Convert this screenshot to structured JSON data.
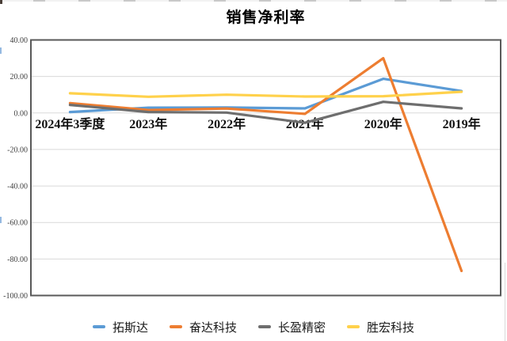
{
  "chart_data": {
    "type": "line",
    "title": "销售净利率",
    "categories": [
      "2024年3季度",
      "2023年",
      "2022年",
      "2021年",
      "2020年",
      "2019年"
    ],
    "series": [
      {
        "name": "拓斯达",
        "color": "#5B9BD5",
        "values": [
          0.5,
          2.9,
          3.0,
          2.5,
          18.7,
          12.0
        ]
      },
      {
        "name": "奋达科技",
        "color": "#ED7D31",
        "values": [
          5.4,
          1.6,
          2.4,
          -0.5,
          30.0,
          -86.5
        ]
      },
      {
        "name": "长盈精密",
        "color": "#6E6E6E",
        "values": [
          4.4,
          0.5,
          0.2,
          -5.4,
          6.1,
          2.5
        ]
      },
      {
        "name": "胜宏科技",
        "color": "#FFD14B",
        "values": [
          10.8,
          8.9,
          10.0,
          9.0,
          9.2,
          11.6
        ]
      }
    ],
    "y_axis": {
      "min": -100,
      "max": 40,
      "step": 20,
      "tick_labels": [
        "40.00",
        "20.00",
        "0.00",
        "-20.00",
        "-40.00",
        "-60.00",
        "-80.00",
        "-100.00"
      ]
    },
    "xlabel": "",
    "ylabel": "",
    "grid": true,
    "legend_position": "bottom",
    "styles": {
      "grid_color": "#D9D9D9",
      "border_color": "#595959",
      "tick_label_color": "#404040",
      "axis_label_color": "#111111",
      "title_color": "#000000",
      "background": "#FFFFFF"
    }
  }
}
